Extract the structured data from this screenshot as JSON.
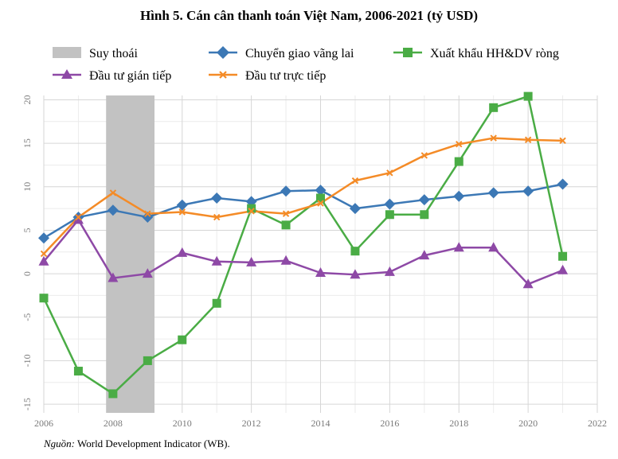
{
  "chart_data": {
    "type": "line",
    "title": "Hình 5. Cán cân thanh toán Việt Nam, 2006-2021 (tỷ USD)",
    "source_label": "Nguồn:",
    "source_text": " World Development Indicator (WB).",
    "xlim": [
      2006,
      2022
    ],
    "ylim": [
      -16,
      20.5
    ],
    "x_ticks": [
      2006,
      2008,
      2010,
      2012,
      2014,
      2016,
      2018,
      2020,
      2022
    ],
    "y_ticks": [
      20,
      15,
      10,
      5,
      0,
      -5,
      -10,
      -15
    ],
    "x_tick_labels": [
      "2006",
      "2008",
      "2010",
      "2012",
      "2014",
      "2016",
      "2018",
      "2020",
      "2022"
    ],
    "y_tick_labels": [
      "20",
      "15",
      "10",
      "5",
      "0",
      "-5",
      "-10",
      "-15"
    ],
    "grid": true,
    "legend_position": "top",
    "recession": {
      "name": "Suy thoái",
      "from": 2007.8,
      "to": 2009.2,
      "color": "#c2c2c2"
    },
    "x": [
      2006,
      2007,
      2008,
      2009,
      2010,
      2011,
      2012,
      2013,
      2014,
      2015,
      2016,
      2017,
      2018,
      2019,
      2020,
      2021
    ],
    "series": [
      {
        "name": "Chuyển giao vãng lai",
        "color": "#3c78b5",
        "marker": "diamond",
        "values": [
          4.1,
          6.5,
          7.3,
          6.5,
          7.9,
          8.7,
          8.3,
          9.5,
          9.6,
          7.5,
          8.0,
          8.5,
          8.9,
          9.3,
          9.5,
          10.3
        ]
      },
      {
        "name": "Xuất khẩu HH&DV ròng",
        "color": "#4aac45",
        "marker": "square",
        "values": [
          -2.8,
          -11.2,
          -13.8,
          -10.0,
          -7.6,
          -3.4,
          7.5,
          5.6,
          8.7,
          2.6,
          6.8,
          6.8,
          12.9,
          19.1,
          20.4,
          2.0
        ]
      },
      {
        "name": "Đầu tư gián tiếp",
        "color": "#8e49a6",
        "marker": "triangle",
        "values": [
          1.4,
          6.2,
          -0.5,
          0.0,
          2.4,
          1.4,
          1.3,
          1.5,
          0.1,
          -0.1,
          0.2,
          2.1,
          3.0,
          3.0,
          -1.2,
          0.4
        ]
      },
      {
        "name": "Đầu tư trực tiếp",
        "color": "#f48b27",
        "marker": "x",
        "values": [
          2.3,
          6.5,
          9.3,
          6.9,
          7.1,
          6.5,
          7.2,
          6.9,
          8.1,
          10.7,
          11.6,
          13.6,
          14.9,
          15.6,
          15.4,
          15.3
        ]
      }
    ]
  }
}
